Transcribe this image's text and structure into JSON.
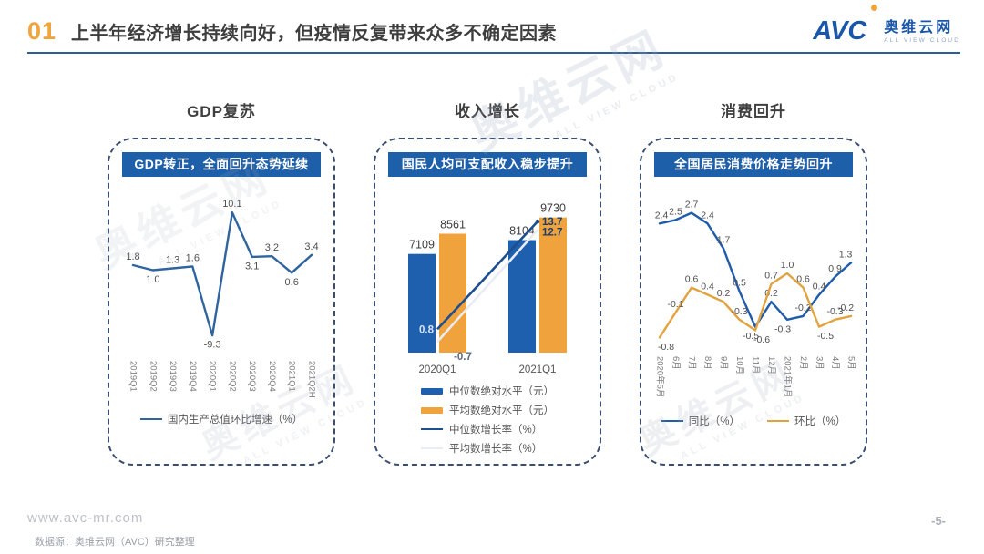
{
  "header": {
    "section_number": "01",
    "title": "上半年经济增长持续向好，但疫情反复带来众多不确定因素",
    "logo": {
      "acronym": "AVC",
      "name_cn": "奥维云网",
      "tagline": "ALL VIEW CLOUD"
    }
  },
  "watermark": {
    "text": "奥维云网",
    "tagline": "ALL VIEW CLOUD"
  },
  "footer": {
    "website": "www.avc-mr.com",
    "source": "数据源：奥维云网（AVC）研究整理",
    "page": "-5-"
  },
  "colors": {
    "brand_blue": "#1e5faa",
    "brand_orange": "#f0a43a",
    "rule_blue": "#2e5d9d"
  },
  "chart_data": [
    {
      "type": "line",
      "panel_title": "GDP复苏",
      "band_title": "GDP转正，全面回升态势延续",
      "categories": [
        "2019Q1",
        "2019Q2",
        "2019Q3",
        "2019Q4",
        "2020Q1",
        "2020Q2",
        "2020Q3",
        "2020Q4",
        "2021Q1",
        "2021Q2H"
      ],
      "series": [
        {
          "name": "国内生产总值环比增速（%）",
          "color": "#2f649e",
          "values": [
            1.8,
            1.0,
            1.3,
            1.6,
            -9.3,
            10.1,
            3.1,
            3.2,
            0.6,
            3.4
          ]
        }
      ],
      "ylim": [
        -12,
        12
      ],
      "grid": false,
      "legend_position": "bottom"
    },
    {
      "type": "bar+line",
      "panel_title": "收入增长",
      "band_title": "国民人均可支配收入稳步提升",
      "categories": [
        "2020Q1",
        "2021Q1"
      ],
      "series": [
        {
          "name": "中位数绝对水平（元）",
          "type": "bar",
          "color": "#1e5fae",
          "values": [
            7109,
            8104
          ]
        },
        {
          "name": "平均数绝对水平（元）",
          "type": "bar",
          "color": "#f0a23c",
          "values": [
            8561,
            9730
          ]
        },
        {
          "name": "中位数增长率（%）",
          "type": "line",
          "color": "#1d4f90",
          "values": [
            0.8,
            13.7
          ]
        },
        {
          "name": "平均数增长率（%）",
          "type": "line",
          "color": "#e9edf3",
          "values": [
            -0.7,
            12.7
          ]
        }
      ],
      "bar_ylim": [
        0,
        10500
      ],
      "line_ylim": [
        -2,
        16
      ],
      "grid": false,
      "legend_position": "bottom"
    },
    {
      "type": "line",
      "panel_title": "消费回升",
      "band_title": "全国居民消费价格走势回升",
      "categories": [
        "2020年5月",
        "6月",
        "7月",
        "8月",
        "9月",
        "10月",
        "11月",
        "12月",
        "2021年1月",
        "2月",
        "3月",
        "4月",
        "5月"
      ],
      "series": [
        {
          "name": "同比（%）",
          "color": "#1f5ca9",
          "below_dx": -5,
          "values": [
            2.4,
            2.5,
            2.7,
            2.4,
            1.7,
            0.5,
            -0.5,
            0.2,
            -0.3,
            -0.2,
            0.4,
            0.9,
            1.3
          ]
        },
        {
          "name": "环比（%）",
          "color": "#e2a23f",
          "below_dx": 7,
          "values": [
            -0.8,
            -0.1,
            0.6,
            0.4,
            0.2,
            -0.3,
            -0.6,
            0.7,
            1.0,
            0.6,
            -0.5,
            -0.3,
            -0.2
          ]
        }
      ],
      "ylim": [
        -1.1,
        3.1
      ],
      "grid": false,
      "legend_position": "bottom"
    }
  ]
}
